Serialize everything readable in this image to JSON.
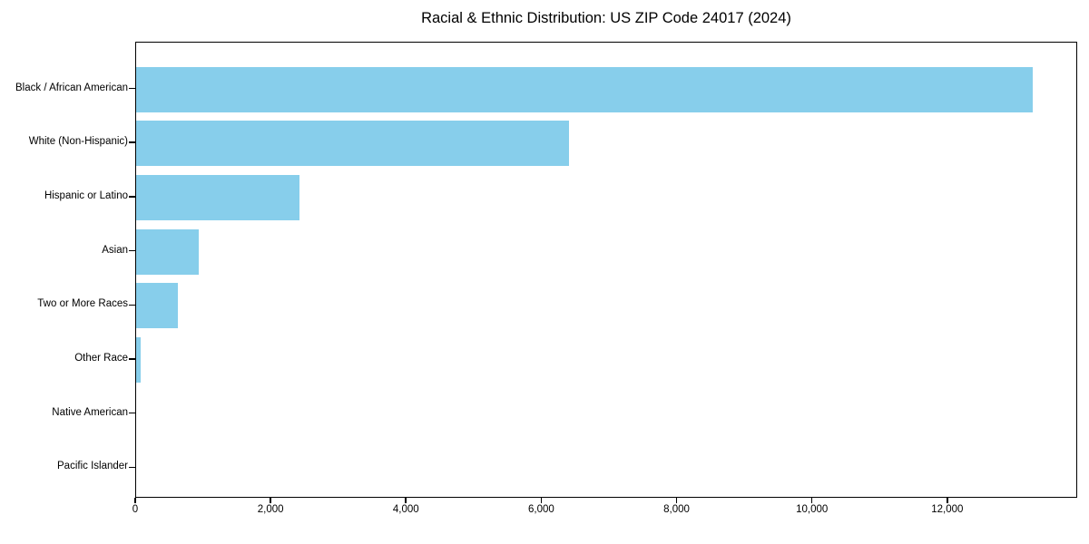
{
  "chart_data": {
    "type": "bar",
    "orientation": "horizontal",
    "title": "Racial & Ethnic Distribution: US ZIP Code 24017 (2024)",
    "categories": [
      "Black / African American",
      "White (Non-Hispanic)",
      "Hispanic or Latino",
      "Asian",
      "Two or More Races",
      "Other Race",
      "Native American",
      "Pacific Islander"
    ],
    "values": [
      13250,
      6400,
      2420,
      930,
      620,
      70,
      0,
      0
    ],
    "xticks": [
      0,
      2000,
      4000,
      6000,
      8000,
      10000,
      12000
    ],
    "xlim": [
      0,
      13920
    ],
    "xlabel": "",
    "ylabel": "",
    "grid": false,
    "legend": null,
    "bar_color": "#87CEEB",
    "axis_color": "#000000",
    "background_color": "#ffffff"
  }
}
